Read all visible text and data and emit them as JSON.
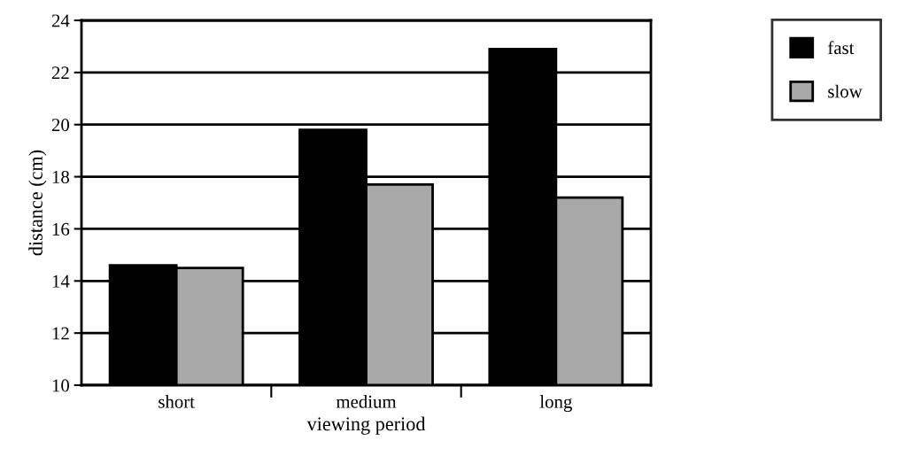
{
  "chart_data": {
    "type": "bar",
    "xlabel": "viewing period",
    "ylabel": "distance (cm)",
    "categories": [
      "short",
      "medium",
      "long"
    ],
    "series": [
      {
        "name": "fast",
        "color": "#000000",
        "values": [
          14.6,
          19.8,
          22.9
        ]
      },
      {
        "name": "slow",
        "color": "#a8a8a8",
        "values": [
          14.5,
          17.7,
          17.2
        ]
      }
    ],
    "ylim": [
      10,
      24
    ],
    "yticks": [
      10,
      12,
      14,
      16,
      18,
      20,
      22,
      24
    ],
    "grid": "y",
    "legend": "top right"
  }
}
